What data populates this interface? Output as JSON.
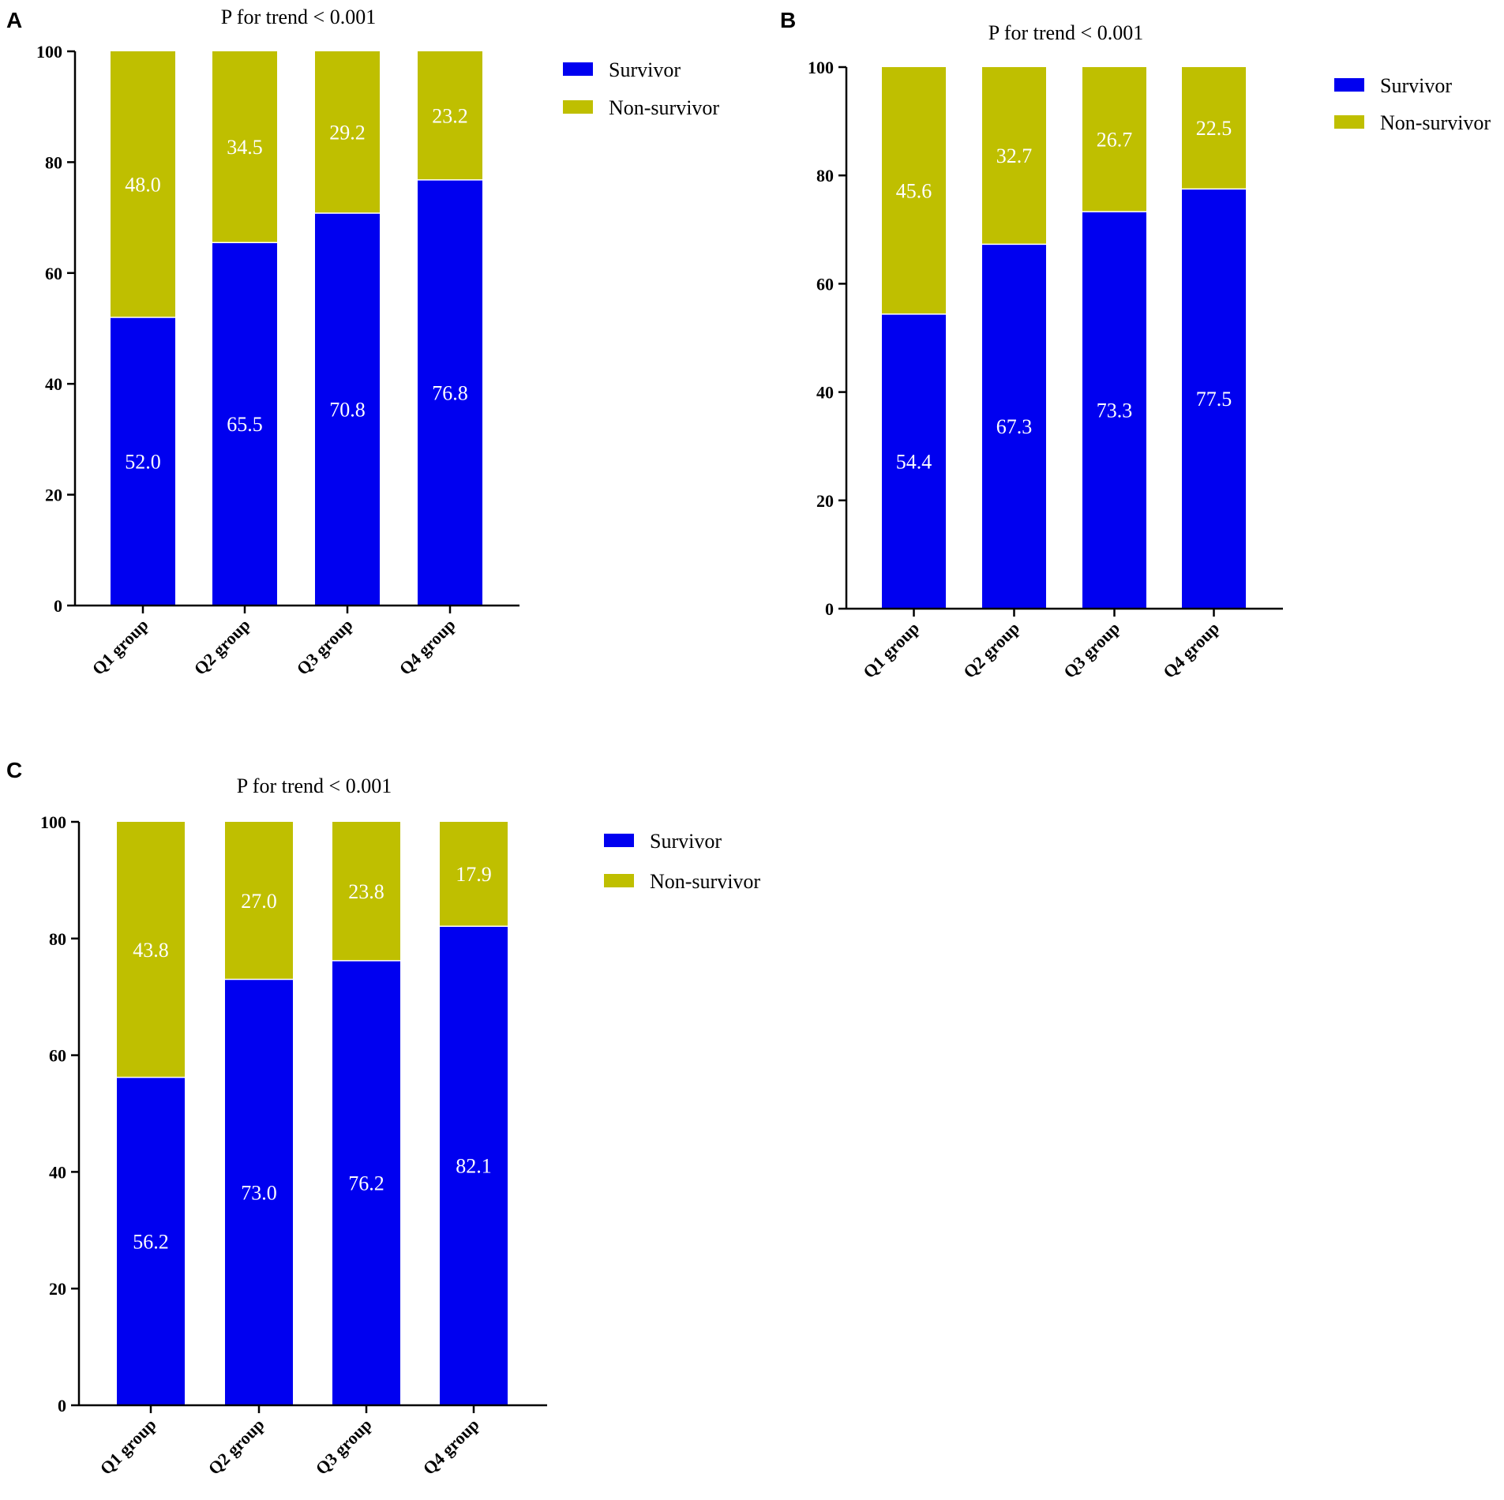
{
  "colors": {
    "survivor": "#0000f0",
    "non_survivor": "#bfbf00",
    "axis": "#000000",
    "label": "#ffffff"
  },
  "chart_data": [
    {
      "panel": "A",
      "type": "bar",
      "stacked": true,
      "title": "P for trend < 0.001",
      "categories": [
        "Q1 group",
        "Q2 group",
        "Q3 group",
        "Q4 group"
      ],
      "series": [
        {
          "name": "Survivor",
          "values": [
            52.0,
            65.5,
            70.8,
            76.8
          ],
          "labels": [
            "52.0",
            "65.5",
            "70.8",
            "76.8"
          ]
        },
        {
          "name": "Non-survivor",
          "values": [
            48.0,
            34.5,
            29.2,
            23.2
          ],
          "labels": [
            "48.0",
            "34.5",
            "29.2",
            "23.2"
          ]
        }
      ],
      "yticks": [
        "0",
        "20",
        "40",
        "60",
        "80",
        "100"
      ],
      "ylim": [
        0,
        100
      ],
      "xlabel": "",
      "ylabel": "",
      "legend": [
        "Survivor",
        "Non-survivor"
      ]
    },
    {
      "panel": "B",
      "type": "bar",
      "stacked": true,
      "title": "P for trend < 0.001",
      "categories": [
        "Q1 group",
        "Q2 group",
        "Q3 group",
        "Q4 group"
      ],
      "series": [
        {
          "name": "Survivor",
          "values": [
            54.4,
            67.3,
            73.3,
            77.5
          ],
          "labels": [
            "54.4",
            "67.3",
            "73.3",
            "77.5"
          ]
        },
        {
          "name": "Non-survivor",
          "values": [
            45.6,
            32.7,
            26.7,
            22.5
          ],
          "labels": [
            "45.6",
            "32.7",
            "26.7",
            "22.5"
          ]
        }
      ],
      "yticks": [
        "0",
        "20",
        "40",
        "60",
        "80",
        "100"
      ],
      "ylim": [
        0,
        100
      ],
      "xlabel": "",
      "ylabel": "",
      "legend": [
        "Survivor",
        "Non-survivor"
      ]
    },
    {
      "panel": "C",
      "type": "bar",
      "stacked": true,
      "title": "P for trend < 0.001",
      "categories": [
        "Q1 group",
        "Q2 group",
        "Q3 group",
        "Q4 group"
      ],
      "series": [
        {
          "name": "Survivor",
          "values": [
            56.2,
            73.0,
            76.2,
            82.1
          ],
          "labels": [
            "56.2",
            "73.0",
            "76.2",
            "82.1"
          ]
        },
        {
          "name": "Non-survivor",
          "values": [
            43.8,
            27.0,
            23.8,
            17.9
          ],
          "labels": [
            "43.8",
            "27.0",
            "23.8",
            "17.9"
          ]
        }
      ],
      "yticks": [
        "0",
        "20",
        "40",
        "60",
        "80",
        "100"
      ],
      "ylim": [
        0,
        100
      ],
      "xlabel": "",
      "ylabel": "",
      "legend": [
        "Survivor",
        "Non-survivor"
      ]
    }
  ]
}
